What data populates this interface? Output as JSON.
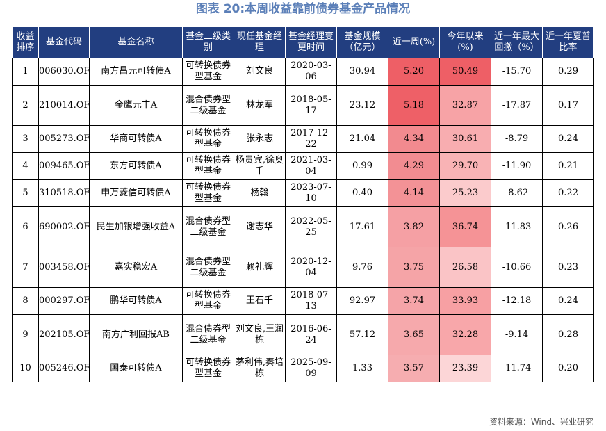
{
  "title": "图表 20:本周收益靠前债券基金产品情况",
  "source": "资料来源：Wind、兴业研究",
  "headers": [
    "收益排序",
    "基金代码",
    "基金名称",
    "基金二级类别",
    "现任基金经理",
    "基金经理变更时间",
    "基金规模（亿元）",
    "近一周(%)",
    "今年以来(%)",
    "近一年最大回撤（%）",
    "近一年夏普比率"
  ],
  "rows": [
    {
      "rank": "1",
      "code": "006030.OF",
      "name": "南方昌元可转债A",
      "category": "可转换债券型基金",
      "manager": "刘文良",
      "change_date": "2020-03-06",
      "size": "30.94",
      "week": "5.20",
      "ytd": "50.49",
      "drawdown": "-15.70",
      "sharpe": "0.29",
      "week_color": "#ee5f66",
      "ytd_color": "#ee5f66",
      "height": 39
    },
    {
      "rank": "2",
      "code": "210014.OF",
      "name": "金鹰元丰A",
      "category": "混合债券型二级基金",
      "manager": "林龙军",
      "change_date": "2018-05-17",
      "size": "23.12",
      "week": "5.18",
      "ytd": "32.87",
      "drawdown": "-17.87",
      "sharpe": "0.17",
      "week_color": "#ee6067",
      "ytd_color": "#f7a3a6",
      "height": 58
    },
    {
      "rank": "3",
      "code": "005273.OF",
      "name": "华商可转债A",
      "category": "可转换债券型基金",
      "manager": "张永志",
      "change_date": "2017-12-22",
      "size": "21.04",
      "week": "4.34",
      "ytd": "30.61",
      "drawdown": "-8.79",
      "sharpe": "0.24",
      "week_color": "#f28a8f",
      "ytd_color": "#f8adb0",
      "height": 39
    },
    {
      "rank": "4",
      "code": "009465.OF",
      "name": "东方可转债A",
      "category": "可转换债券型基金",
      "manager": "杨贵宾,徐奥千",
      "change_date": "2021-03-04",
      "size": "0.99",
      "week": "4.29",
      "ytd": "29.70",
      "drawdown": "-11.90",
      "sharpe": "0.21",
      "week_color": "#f28c91",
      "ytd_color": "#f9b3b5",
      "height": 39
    },
    {
      "rank": "5",
      "code": "310518.OF",
      "name": "申万菱信可转债A",
      "category": "可转换债券型基金",
      "manager": "杨翰",
      "change_date": "2023-07-10",
      "size": "0.40",
      "week": "4.14",
      "ytd": "25.23",
      "drawdown": "-8.62",
      "sharpe": "0.22",
      "week_color": "#f39296",
      "ytd_color": "#fbcbcc",
      "height": 39
    },
    {
      "rank": "6",
      "code": "690002.OF",
      "name": "民生加银增强收益A",
      "category": "混合债券型二级基金",
      "manager": "谢志华",
      "change_date": "2022-05-25",
      "size": "17.61",
      "week": "3.82",
      "ytd": "36.74",
      "drawdown": "-11.83",
      "sharpe": "0.26",
      "week_color": "#f5a0a4",
      "ytd_color": "#f59396",
      "height": 58
    },
    {
      "rank": "7",
      "code": "003458.OF",
      "name": "嘉实稳宏A",
      "category": "混合债券型二级基金",
      "manager": "赖礼辉",
      "change_date": "2020-12-04",
      "size": "9.76",
      "week": "3.75",
      "ytd": "26.58",
      "drawdown": "-10.66",
      "sharpe": "0.23",
      "week_color": "#f5a4a7",
      "ytd_color": "#fac4c6",
      "height": 58
    },
    {
      "rank": "8",
      "code": "000297.OF",
      "name": "鹏华可转债A",
      "category": "可转换债券型基金",
      "manager": "王石千",
      "change_date": "2018-07-13",
      "size": "92.97",
      "week": "3.74",
      "ytd": "33.93",
      "drawdown": "-12.18",
      "sharpe": "0.24",
      "week_color": "#f5a4a8",
      "ytd_color": "#f7a0a3",
      "height": 39
    },
    {
      "rank": "9",
      "code": "202105.OF",
      "name": "南方广利回报AB",
      "category": "混合债券型二级基金",
      "manager": "刘文良,王润栋",
      "change_date": "2016-06-24",
      "size": "57.12",
      "week": "3.65",
      "ytd": "32.28",
      "drawdown": "-9.14",
      "sharpe": "0.28",
      "week_color": "#f6a9ac",
      "ytd_color": "#f8a7aa",
      "height": 58
    },
    {
      "rank": "10",
      "code": "005246.OF",
      "name": "国泰可转债A",
      "category": "可转换债券型基金",
      "manager": "茅利伟,秦培栋",
      "change_date": "2025-09-09",
      "size": "1.33",
      "week": "3.57",
      "ytd": "23.39",
      "drawdown": "-11.74",
      "sharpe": "0.20",
      "week_color": "#f6adb0",
      "ytd_color": "#fcd6d7",
      "height": 39
    }
  ]
}
